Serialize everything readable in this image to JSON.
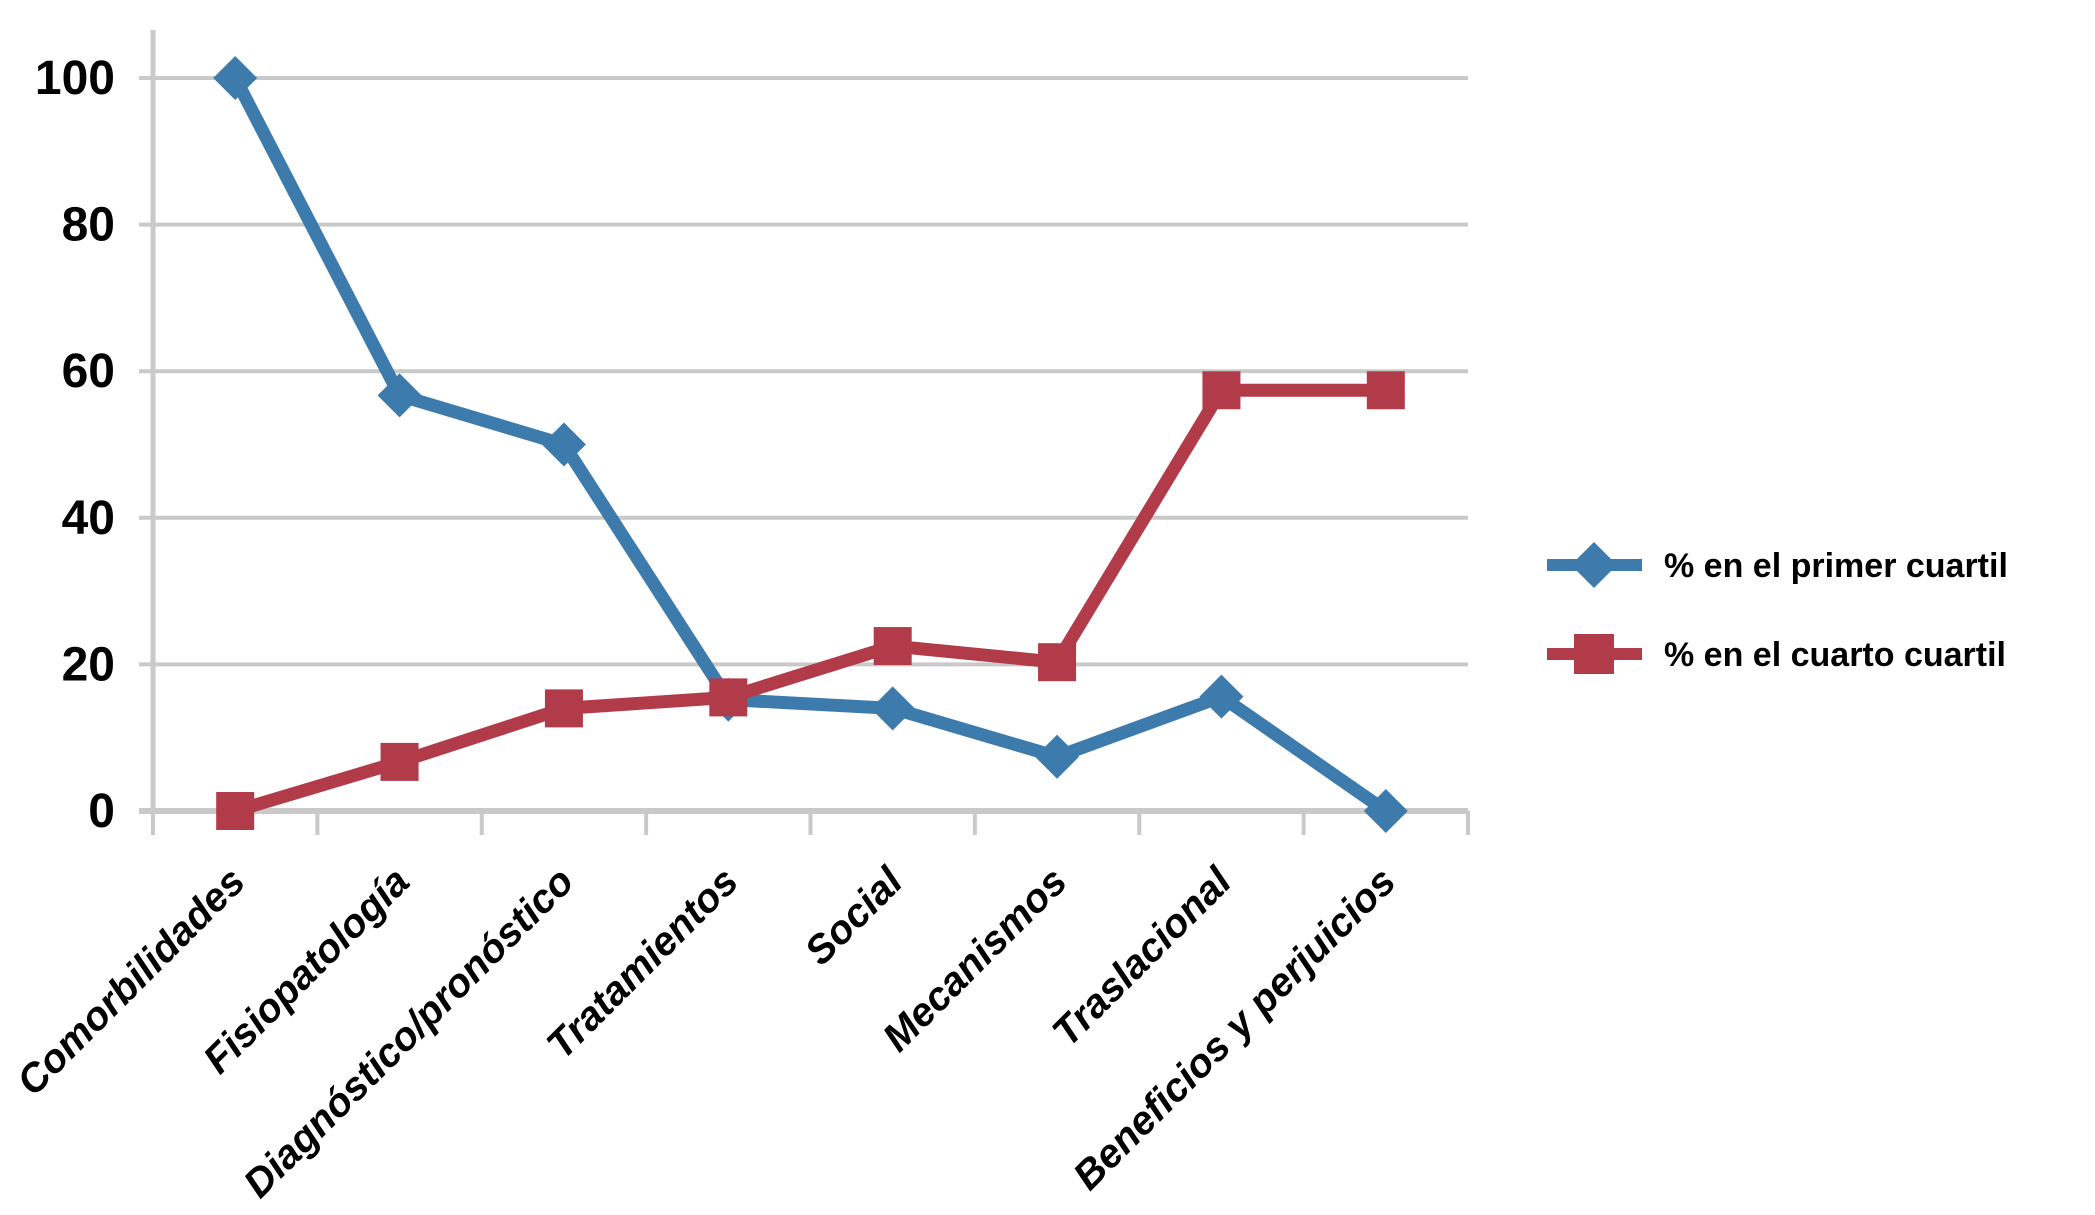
{
  "chart_data": {
    "type": "line",
    "title": "",
    "xlabel": "",
    "ylabel": "",
    "categories": [
      "Comorbilidades",
      "Fisiopatología",
      "Diagnóstico/pronóstico",
      "Tratamientos",
      "Social",
      "Mecanismos",
      "Traslacional",
      "Beneficios y perjuicios"
    ],
    "series": [
      {
        "name": "% en el primer cuartil",
        "marker": "diamond",
        "color": "#3D7BAD",
        "values": [
          100,
          56.7,
          50,
          15.2,
          14,
          7.4,
          15.6,
          0
        ]
      },
      {
        "name": "% en el cuarto cuartil",
        "marker": "square",
        "color": "#B23B49",
        "values": [
          0,
          6.7,
          14,
          15.5,
          22.5,
          20.3,
          57.4,
          57.4
        ]
      }
    ],
    "ylim": [
      0,
      100
    ],
    "yticks": [
      0,
      20,
      40,
      60,
      80,
      100
    ],
    "grid": "horizontal",
    "legend_position": "right"
  },
  "colors": {
    "grid": "#C9C9C9",
    "axis": "#C9C9C9",
    "text": "#000000",
    "background": "#FFFFFF"
  }
}
